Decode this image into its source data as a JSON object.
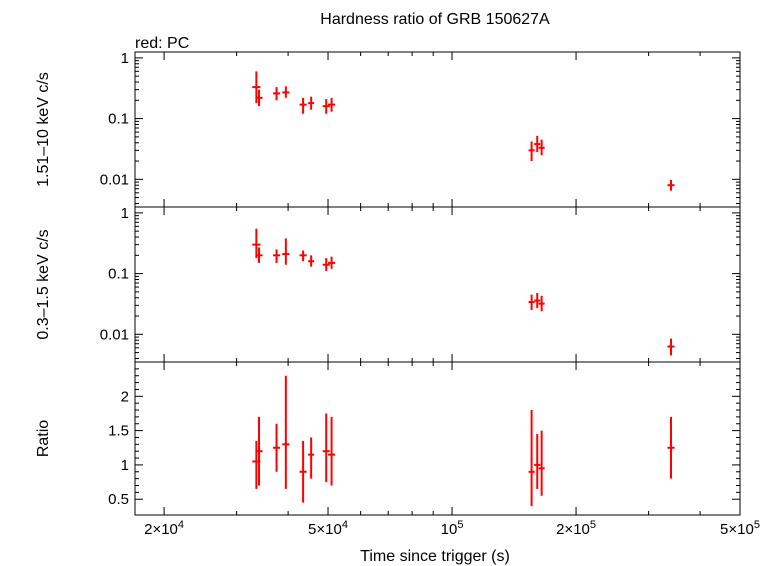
{
  "chart_data": {
    "type": "scatter",
    "title": "Hardness ratio of GRB 150627A",
    "subtitle": "red: PC",
    "xlabel": "Time since trigger (s)",
    "xscale": "log",
    "xlim": [
      17000,
      500000
    ],
    "x_ticks": [
      {
        "value": 20000,
        "mant": "2×10",
        "exp": "4"
      },
      {
        "value": 50000,
        "mant": "5×10",
        "exp": "4"
      },
      {
        "value": 100000,
        "mant": "10",
        "exp": "5"
      },
      {
        "value": 200000,
        "mant": "2×10",
        "exp": "5"
      },
      {
        "value": 500000,
        "mant": "5×10",
        "exp": "5"
      }
    ],
    "series_color": "#ff0000",
    "panels": [
      {
        "ylabel": "1.51–10 keV c/s",
        "yscale": "log",
        "ylim": [
          0.0035,
          1.25
        ],
        "y_ticks": [
          {
            "value": 1,
            "label": "1"
          },
          {
            "value": 0.1,
            "label": "0.1"
          },
          {
            "value": 0.01,
            "label": "0.01"
          }
        ],
        "points": [
          {
            "x": 33500,
            "y": 0.33,
            "lo": 0.18,
            "hi": 0.6,
            "dx": 0.04
          },
          {
            "x": 34000,
            "y": 0.22,
            "lo": 0.16,
            "hi": 0.3,
            "dx": 0.03
          },
          {
            "x": 37500,
            "y": 0.26,
            "lo": 0.2,
            "hi": 0.33,
            "dx": 0.03
          },
          {
            "x": 39500,
            "y": 0.27,
            "lo": 0.22,
            "hi": 0.34,
            "dx": 0.03
          },
          {
            "x": 43500,
            "y": 0.17,
            "lo": 0.12,
            "hi": 0.22,
            "dx": 0.03
          },
          {
            "x": 45500,
            "y": 0.18,
            "lo": 0.14,
            "hi": 0.23,
            "dx": 0.02
          },
          {
            "x": 49500,
            "y": 0.16,
            "lo": 0.12,
            "hi": 0.21,
            "dx": 0.03
          },
          {
            "x": 51000,
            "y": 0.17,
            "lo": 0.13,
            "hi": 0.22,
            "dx": 0.03
          },
          {
            "x": 156000,
            "y": 0.03,
            "lo": 0.02,
            "hi": 0.042,
            "dx": 0.02
          },
          {
            "x": 161000,
            "y": 0.038,
            "lo": 0.028,
            "hi": 0.052,
            "dx": 0.02
          },
          {
            "x": 165000,
            "y": 0.033,
            "lo": 0.025,
            "hi": 0.045,
            "dx": 0.02
          },
          {
            "x": 340000,
            "y": 0.008,
            "lo": 0.0065,
            "hi": 0.0098,
            "dx": 0.03
          }
        ]
      },
      {
        "ylabel": "0.3–1.5 keV c/s",
        "yscale": "log",
        "ylim": [
          0.0035,
          1.25
        ],
        "y_ticks": [
          {
            "value": 1,
            "label": "1"
          },
          {
            "value": 0.1,
            "label": "0.1"
          },
          {
            "value": 0.01,
            "label": "0.01"
          }
        ],
        "points": [
          {
            "x": 33500,
            "y": 0.3,
            "lo": 0.18,
            "hi": 0.55,
            "dx": 0.04
          },
          {
            "x": 34000,
            "y": 0.2,
            "lo": 0.15,
            "hi": 0.27,
            "dx": 0.03
          },
          {
            "x": 37500,
            "y": 0.2,
            "lo": 0.15,
            "hi": 0.25,
            "dx": 0.03
          },
          {
            "x": 39500,
            "y": 0.21,
            "lo": 0.14,
            "hi": 0.38,
            "dx": 0.03
          },
          {
            "x": 43500,
            "y": 0.2,
            "lo": 0.16,
            "hi": 0.24,
            "dx": 0.03
          },
          {
            "x": 45500,
            "y": 0.16,
            "lo": 0.13,
            "hi": 0.2,
            "dx": 0.02
          },
          {
            "x": 49500,
            "y": 0.14,
            "lo": 0.11,
            "hi": 0.18,
            "dx": 0.03
          },
          {
            "x": 51000,
            "y": 0.15,
            "lo": 0.12,
            "hi": 0.19,
            "dx": 0.03
          },
          {
            "x": 156000,
            "y": 0.034,
            "lo": 0.025,
            "hi": 0.045,
            "dx": 0.02
          },
          {
            "x": 161000,
            "y": 0.036,
            "lo": 0.027,
            "hi": 0.048,
            "dx": 0.02
          },
          {
            "x": 165000,
            "y": 0.032,
            "lo": 0.024,
            "hi": 0.043,
            "dx": 0.02
          },
          {
            "x": 340000,
            "y": 0.0063,
            "lo": 0.0045,
            "hi": 0.0085,
            "dx": 0.03
          }
        ]
      },
      {
        "ylabel": "Ratio",
        "yscale": "linear",
        "ylim": [
          0.27,
          2.5
        ],
        "y_ticks": [
          {
            "value": 0.5,
            "label": "0.5"
          },
          {
            "value": 1,
            "label": "1"
          },
          {
            "value": 1.5,
            "label": "1.5"
          },
          {
            "value": 2,
            "label": "2"
          }
        ],
        "points": [
          {
            "x": 33500,
            "y": 1.05,
            "lo": 0.65,
            "hi": 1.35,
            "dx": 0.04
          },
          {
            "x": 34000,
            "y": 1.2,
            "lo": 0.7,
            "hi": 1.7,
            "dx": 0.03
          },
          {
            "x": 37500,
            "y": 1.25,
            "lo": 0.9,
            "hi": 1.6,
            "dx": 0.03
          },
          {
            "x": 39500,
            "y": 1.3,
            "lo": 0.65,
            "hi": 2.3,
            "dx": 0.03
          },
          {
            "x": 43500,
            "y": 0.9,
            "lo": 0.45,
            "hi": 1.35,
            "dx": 0.03
          },
          {
            "x": 45500,
            "y": 1.15,
            "lo": 0.8,
            "hi": 1.4,
            "dx": 0.02
          },
          {
            "x": 49500,
            "y": 1.2,
            "lo": 0.75,
            "hi": 1.75,
            "dx": 0.03
          },
          {
            "x": 51000,
            "y": 1.15,
            "lo": 0.7,
            "hi": 1.7,
            "dx": 0.03
          },
          {
            "x": 156000,
            "y": 0.9,
            "lo": 0.4,
            "hi": 1.8,
            "dx": 0.02
          },
          {
            "x": 161000,
            "y": 1.0,
            "lo": 0.65,
            "hi": 1.45,
            "dx": 0.02
          },
          {
            "x": 165000,
            "y": 0.95,
            "lo": 0.55,
            "hi": 1.5,
            "dx": 0.02
          },
          {
            "x": 340000,
            "y": 1.25,
            "lo": 0.8,
            "hi": 1.7,
            "dx": 0.03
          }
        ]
      }
    ]
  }
}
